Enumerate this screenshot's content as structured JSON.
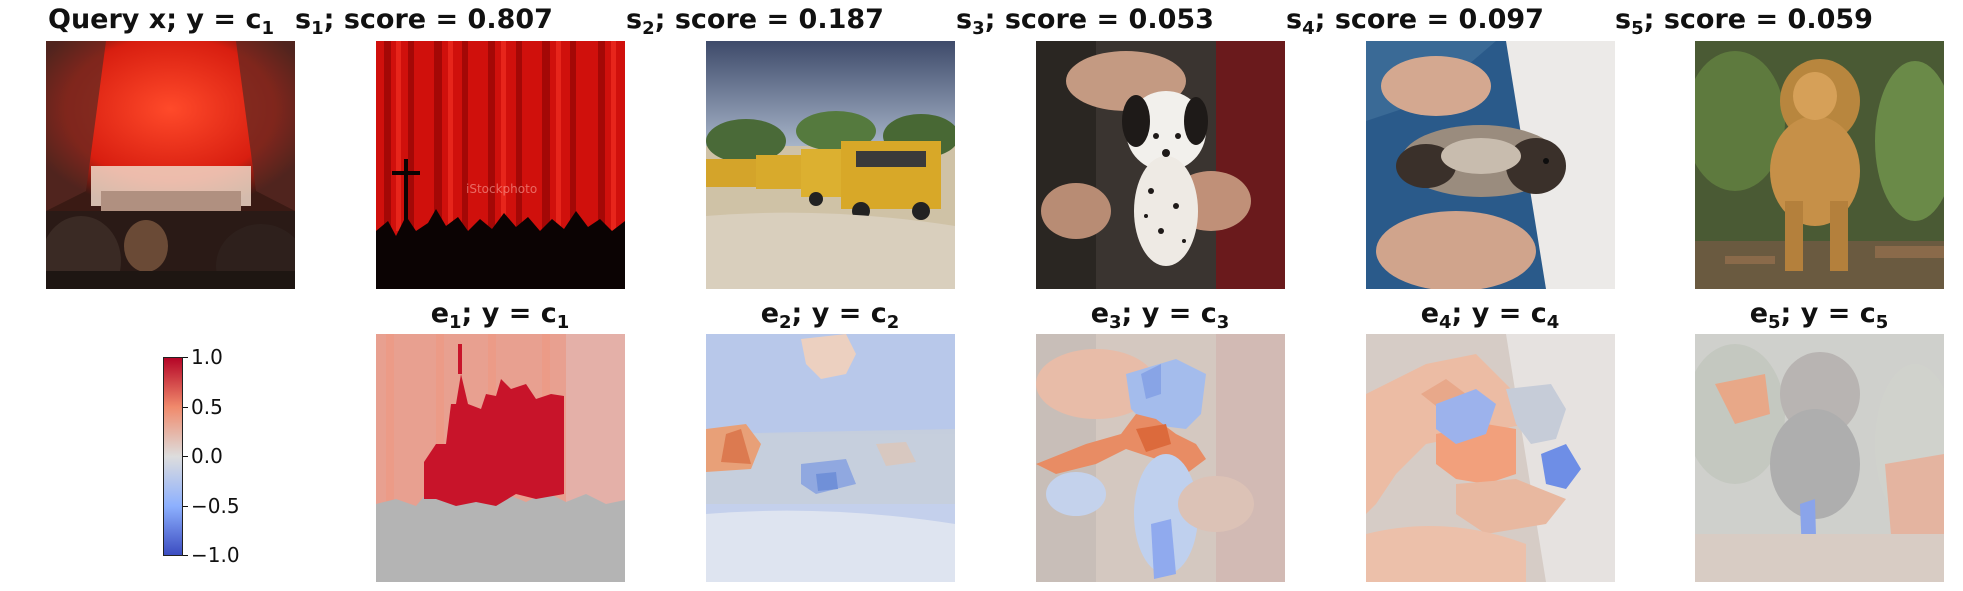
{
  "top_row": [
    {
      "prefix": "Query x; y = c",
      "sub": "1",
      "suffix": ""
    },
    {
      "prefix": "s",
      "sub": "1",
      "suffix": "; score = 0.807"
    },
    {
      "prefix": "s",
      "sub": "2",
      "suffix": "; score = 0.187"
    },
    {
      "prefix": "s",
      "sub": "3",
      "suffix": "; score = 0.053"
    },
    {
      "prefix": "s",
      "sub": "4",
      "suffix": "; score = 0.097"
    },
    {
      "prefix": "s",
      "sub": "5",
      "suffix": "; score = 0.059"
    }
  ],
  "bottom_row": [
    {
      "e": "e",
      "esub": "1",
      "mid": "; y = c",
      "csub": "1"
    },
    {
      "e": "e",
      "esub": "2",
      "mid": "; y = c",
      "csub": "2"
    },
    {
      "e": "e",
      "esub": "3",
      "mid": "; y = c",
      "csub": "3"
    },
    {
      "e": "e",
      "esub": "4",
      "mid": "; y = c",
      "csub": "4"
    },
    {
      "e": "e",
      "esub": "5",
      "mid": "; y = c",
      "csub": "5"
    }
  ],
  "colorbar": {
    "ticks": [
      "1.0",
      "0.5",
      "0.0",
      "−0.5",
      "−1.0"
    ],
    "colors": {
      "high": "#b40426",
      "mid": "#dddddd",
      "low": "#3b4cc0"
    }
  },
  "image_subjects": [
    "theater-stage-audience-image",
    "red-curtain-crowd-image",
    "school-buses-image",
    "dalmatian-puppy-image",
    "ferret-on-lap-image",
    "lion-image"
  ]
}
